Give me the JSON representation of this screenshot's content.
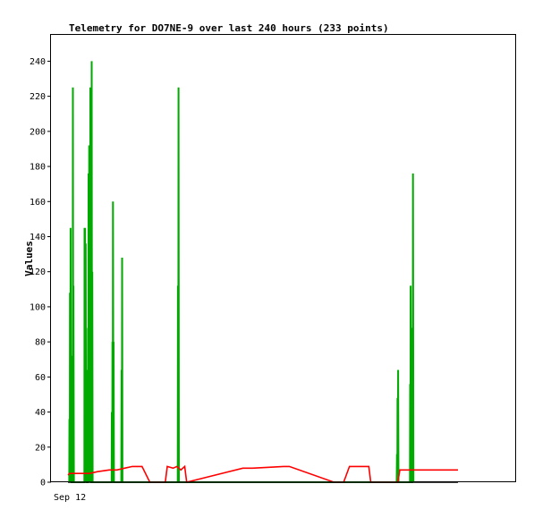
{
  "chart_data": {
    "type": "line",
    "title": "Telemetry for DO7NE-9 over last 240 hours (233 points)",
    "ylabel": "Values",
    "xlabel": "",
    "x_tick_labels": [
      "Sep 12"
    ],
    "y_ticks": [
      0,
      20,
      40,
      60,
      80,
      100,
      120,
      140,
      160,
      180,
      200,
      220,
      240
    ],
    "ylim": [
      0,
      255
    ],
    "xlim": [
      0,
      240
    ],
    "grid": false,
    "colors": {
      "frame": "#000000",
      "background": "#ffffff"
    },
    "series": [
      {
        "color": "#00aa00",
        "points": [
          [
            9.4,
            0
          ],
          [
            9.5,
            36
          ],
          [
            9.7,
            0
          ],
          [
            9.8,
            108
          ],
          [
            10.0,
            0
          ],
          [
            10.1,
            145
          ],
          [
            10.3,
            0
          ],
          [
            10.4,
            72
          ],
          [
            10.6,
            0
          ],
          [
            11.2,
            0
          ],
          [
            11.3,
            225
          ],
          [
            11.5,
            0
          ],
          [
            11.6,
            112
          ],
          [
            11.8,
            0
          ],
          [
            17.2,
            0
          ],
          [
            17.3,
            145
          ],
          [
            17.5,
            0
          ],
          [
            17.6,
            145
          ],
          [
            17.8,
            0
          ],
          [
            17.9,
            136
          ],
          [
            18.1,
            0
          ],
          [
            18.2,
            64
          ],
          [
            18.4,
            0
          ],
          [
            19.0,
            0
          ],
          [
            19.1,
            88
          ],
          [
            19.3,
            0
          ],
          [
            19.4,
            176
          ],
          [
            19.6,
            0
          ],
          [
            19.7,
            192
          ],
          [
            19.9,
            0
          ],
          [
            20.0,
            96
          ],
          [
            20.2,
            0
          ],
          [
            20.3,
            225
          ],
          [
            20.5,
            0
          ],
          [
            20.6,
            112
          ],
          [
            20.8,
            0
          ],
          [
            20.9,
            0
          ],
          [
            21.0,
            240
          ],
          [
            21.2,
            0
          ],
          [
            21.3,
            120
          ],
          [
            21.5,
            0
          ],
          [
            31.3,
            0
          ],
          [
            31.4,
            40
          ],
          [
            31.6,
            0
          ],
          [
            31.7,
            80
          ],
          [
            31.9,
            0
          ],
          [
            32.0,
            160
          ],
          [
            32.2,
            0
          ],
          [
            32.3,
            80
          ],
          [
            32.5,
            0
          ],
          [
            36.3,
            0
          ],
          [
            36.4,
            64
          ],
          [
            36.6,
            0
          ],
          [
            36.7,
            128
          ],
          [
            36.9,
            0
          ],
          [
            65.4,
            0
          ],
          [
            65.5,
            112
          ],
          [
            65.7,
            0
          ],
          [
            65.8,
            225
          ],
          [
            66.0,
            0
          ],
          [
            178.4,
            0
          ],
          [
            178.5,
            16
          ],
          [
            178.7,
            0
          ],
          [
            178.8,
            48
          ],
          [
            179.0,
            0
          ],
          [
            179.1,
            64
          ],
          [
            179.3,
            0
          ],
          [
            185.2,
            0
          ],
          [
            185.3,
            56
          ],
          [
            185.5,
            0
          ],
          [
            185.6,
            112
          ],
          [
            185.8,
            0
          ],
          [
            185.9,
            80
          ],
          [
            186.1,
            0
          ],
          [
            186.4,
            0
          ],
          [
            186.5,
            88
          ],
          [
            186.7,
            0
          ],
          [
            186.8,
            176
          ],
          [
            187.0,
            0
          ]
        ]
      },
      {
        "color": "#ff0000",
        "points": [
          [
            8.8,
            4
          ],
          [
            9.5,
            5
          ],
          [
            14,
            5
          ],
          [
            20,
            5
          ],
          [
            24,
            6
          ],
          [
            30,
            7
          ],
          [
            34,
            7
          ],
          [
            38,
            8
          ],
          [
            42,
            9
          ],
          [
            47,
            9
          ],
          [
            51,
            0
          ],
          [
            59,
            0
          ],
          [
            60,
            9
          ],
          [
            63,
            8
          ],
          [
            65,
            9
          ],
          [
            67,
            7
          ],
          [
            69,
            9
          ],
          [
            70,
            0
          ],
          [
            99,
            8
          ],
          [
            104,
            8
          ],
          [
            120,
            9
          ],
          [
            123,
            9
          ],
          [
            146,
            0
          ],
          [
            151,
            0
          ],
          [
            154,
            9
          ],
          [
            164,
            9
          ],
          [
            165,
            0
          ],
          [
            179,
            0
          ],
          [
            180,
            7
          ],
          [
            183,
            7
          ],
          [
            190,
            7
          ],
          [
            196,
            7
          ],
          [
            210,
            7
          ]
        ]
      },
      {
        "color": "#000000",
        "points": [
          [
            8.8,
            0
          ],
          [
            210,
            0
          ]
        ]
      }
    ]
  }
}
